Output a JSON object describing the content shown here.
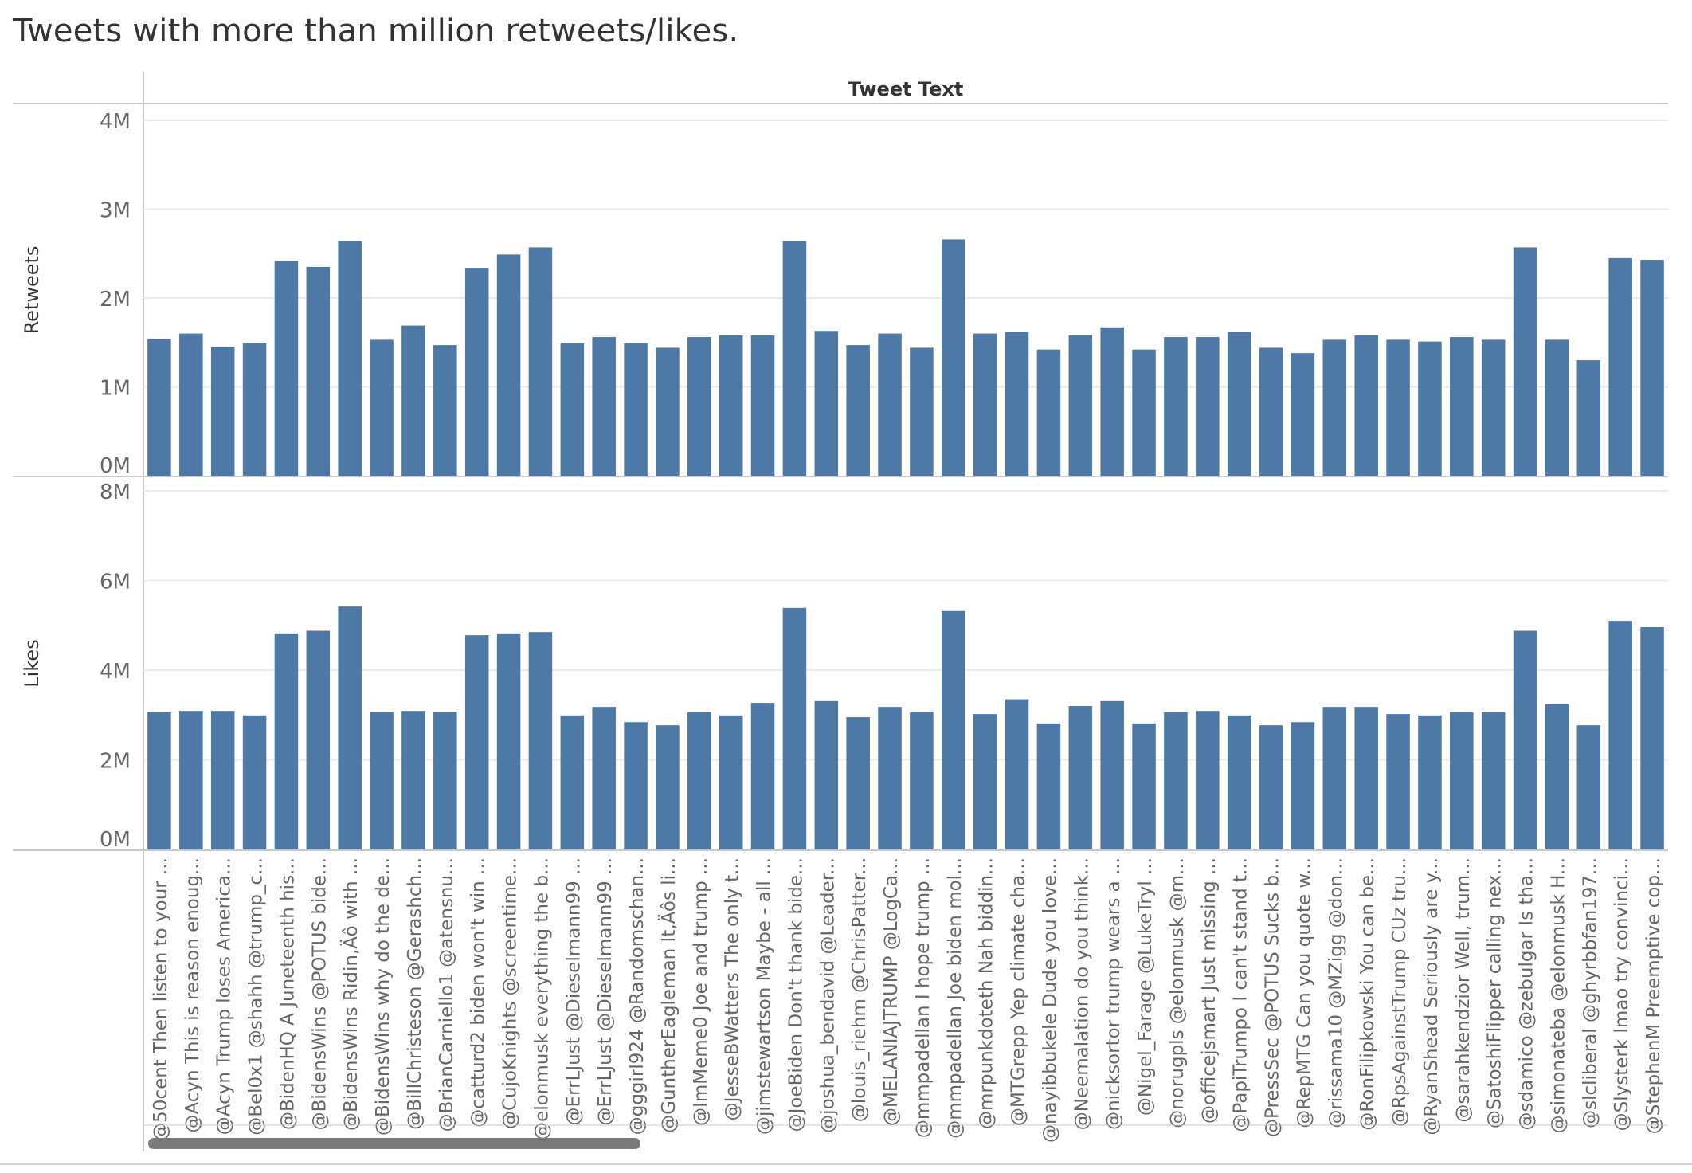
{
  "title": "Tweets with more than million retweets/likes.",
  "colors": {
    "bar": "#4e79a7",
    "grid": "#ebebeb",
    "axis": "#c8c8c8",
    "tick_text": "#666666",
    "label_text": "#333333"
  },
  "chart_data": {
    "type": "bar",
    "column_header": "Tweet Text",
    "categories": [
      "@50cent Then listen to your ...",
      "@Acyn This is reason enoug...",
      "@Acyn Trump loses America...",
      "@Bel0x1 @shahh @trump_c...",
      "@BidenHQ A Juneteenth his...",
      "@BidensWins @POTUS bide...",
      "@BidensWins Ridin‚Äô with ...",
      "@BidensWins why do the de...",
      "@BillChristeson @Gerashch...",
      "@BrianCarniello1 @atensnu...",
      "@catturd2 biden won't win ...",
      "@CujoKnights @screentime...",
      "@elonmusk everything the b...",
      "@ErrLJust @Dieselmann99 ...",
      "@ErrLJust @Dieselmann99 ...",
      "@gggirl924 @Randomschan...",
      "@GuntherEagleman It‚Äôs li...",
      "@ImMeme0 Joe and trump ...",
      "@JesseBWatters The only t...",
      "@jimstewartson Maybe - all ...",
      "@JoeBiden Don't thank bide...",
      "@joshua_bendavid @Leader...",
      "@louis_riehm @ChrisPatter...",
      "@MELANIAJTRUMP @LogCa...",
      "@mmpadellan I hope trump ...",
      "@mmpadellan Joe biden mol...",
      "@mrpunkdoteth Nah biddin...",
      "@MTGrepp Yep climate cha...",
      "@nayibbukele Dude you love...",
      "@Neemalation do you think...",
      "@nicksortor trump wears a ...",
      "@Nigel_Farage @LukeTryl ...",
      "@norugpls @elonmusk @m...",
      "@officejsmart Just missing ...",
      "@PapiTrumpo I can't stand t...",
      "@PressSec @POTUS Sucks b...",
      "@RepMTG Can you quote w...",
      "@rissama10 @MZigg @don...",
      "@RonFilipkowski You can be...",
      "@RpsAgainstTrump CUz tru...",
      "@RyanShead Seriously are y...",
      "@sarahkendzior Well, trum...",
      "@SatoshiFlipper calling nex...",
      "@sdamico @zebulgar Is tha...",
      "@simonateba @elonmusk H...",
      "@slcliberal @ghyrbbfan197...",
      "@Slysterk lmao try convinci...",
      "@StephenM Preemptive cop..."
    ],
    "panels": [
      {
        "name": "Retweets",
        "ylim": [
          0,
          4000000
        ],
        "ticks": [
          0,
          1000000,
          2000000,
          3000000,
          4000000
        ],
        "tick_labels": [
          "0M",
          "1M",
          "2M",
          "3M",
          "4M"
        ],
        "values": [
          1540000,
          1600000,
          1450000,
          1490000,
          2420000,
          2350000,
          2640000,
          1530000,
          1690000,
          1470000,
          2340000,
          2490000,
          2570000,
          1490000,
          1560000,
          1490000,
          1440000,
          1560000,
          1580000,
          1580000,
          2640000,
          1630000,
          1470000,
          1600000,
          1440000,
          2660000,
          1600000,
          1620000,
          1420000,
          1580000,
          1670000,
          1420000,
          1560000,
          1560000,
          1620000,
          1440000,
          1380000,
          1530000,
          1580000,
          1530000,
          1510000,
          1560000,
          1530000,
          2570000,
          1530000,
          1300000,
          2450000,
          2430000
        ]
      },
      {
        "name": "Likes",
        "ylim": [
          0,
          8000000
        ],
        "ticks": [
          0,
          2000000,
          4000000,
          6000000,
          8000000
        ],
        "tick_labels": [
          "0M",
          "2M",
          "4M",
          "6M",
          "8M"
        ],
        "values": [
          3060000,
          3090000,
          3090000,
          2990000,
          4820000,
          4880000,
          5420000,
          3060000,
          3090000,
          3060000,
          4780000,
          4820000,
          4850000,
          2990000,
          3180000,
          2840000,
          2770000,
          3060000,
          2990000,
          3270000,
          5390000,
          3310000,
          2950000,
          3180000,
          3060000,
          5320000,
          3020000,
          3350000,
          2810000,
          3200000,
          3310000,
          2810000,
          3060000,
          3090000,
          2990000,
          2770000,
          2840000,
          3180000,
          3180000,
          3020000,
          2990000,
          3060000,
          3060000,
          4880000,
          3240000,
          2770000,
          5100000,
          4960000
        ]
      }
    ],
    "grid": true,
    "legend": "none"
  }
}
